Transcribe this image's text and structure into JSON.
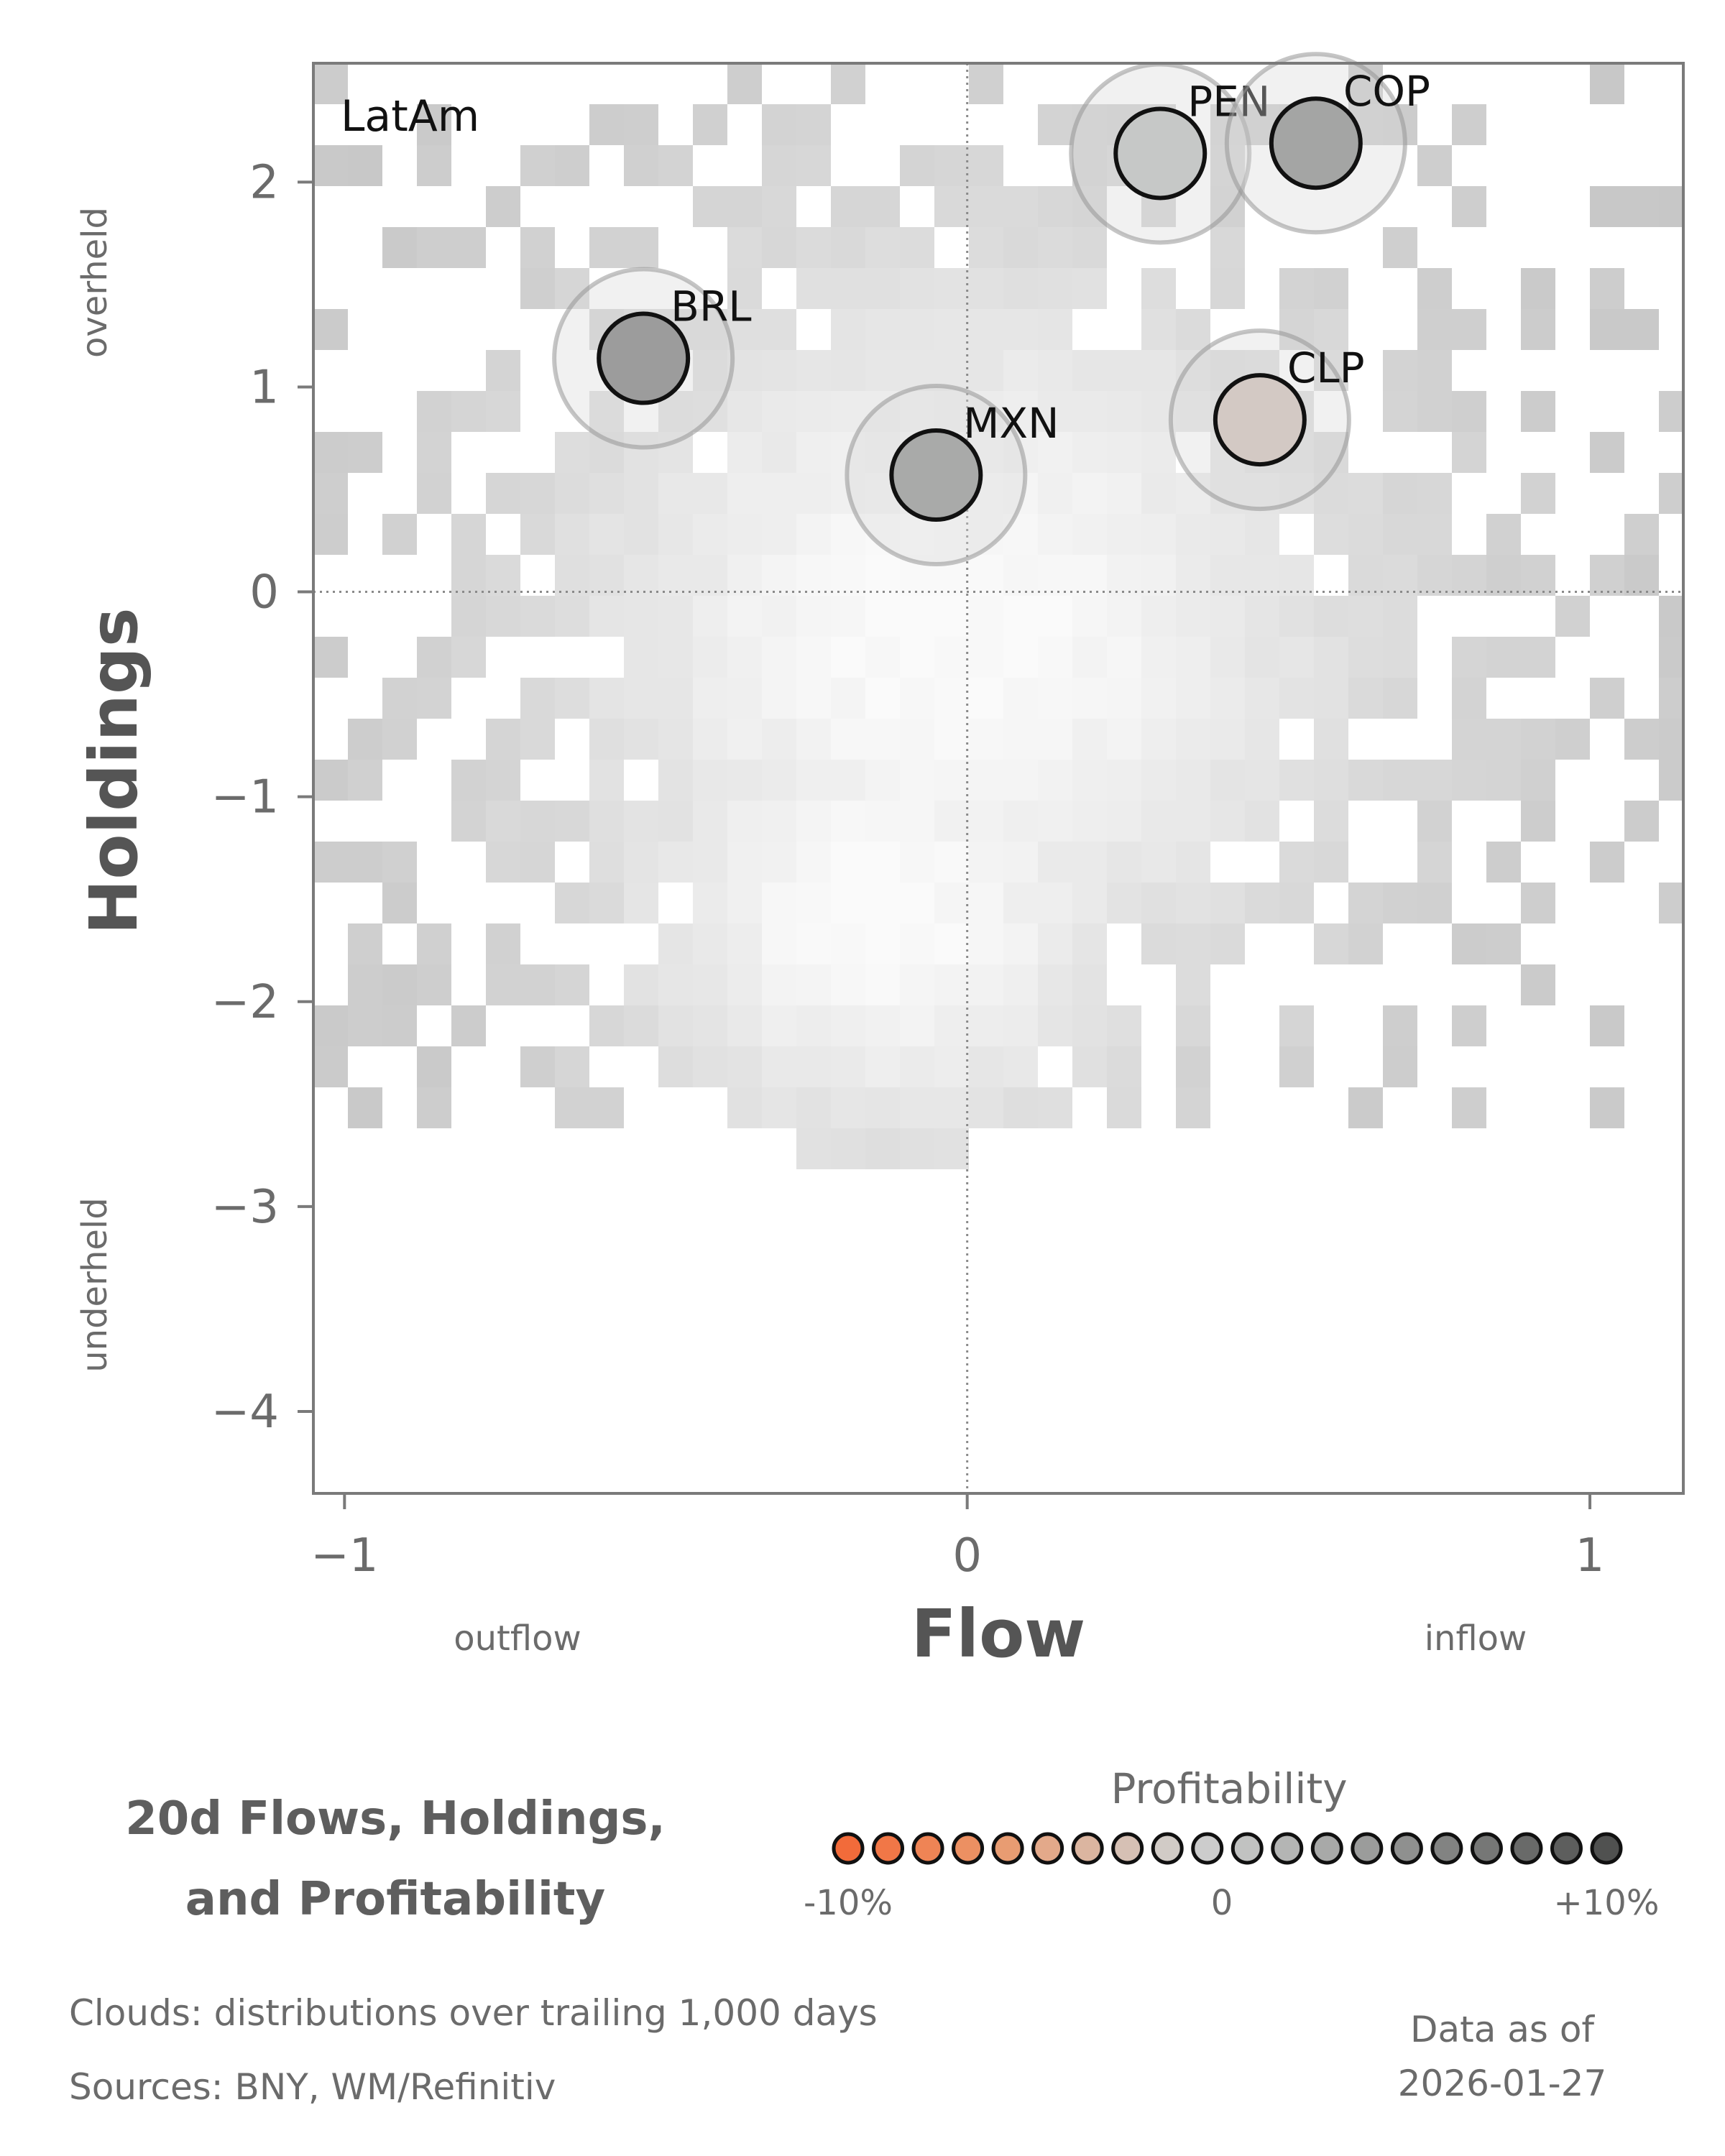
{
  "chart_data": {
    "type": "scatter",
    "panel_title": "LatAm",
    "xlabel": "Flow",
    "ylabel": "Holdings",
    "xlim": [
      -1.05,
      1.15
    ],
    "ylim": [
      -4.4,
      2.58
    ],
    "xticks": [
      -1,
      0,
      1
    ],
    "xtick_labels": [
      "−1",
      "0",
      "1"
    ],
    "yticks": [
      2,
      1,
      0,
      -1,
      -2,
      -3,
      -4
    ],
    "ytick_labels": [
      "2",
      "1",
      "0",
      "−1",
      "−2",
      "−3",
      "−4"
    ],
    "x_side_labels": {
      "left": "outflow",
      "right": "inflow"
    },
    "y_side_labels": {
      "top": "overheld",
      "bottom": "underheld"
    },
    "reference_lines": {
      "x": 0,
      "y": 0
    },
    "points": [
      {
        "label": "BRL",
        "x": -0.52,
        "y": 1.14,
        "color": "#9c9c9c"
      },
      {
        "label": "MXN",
        "x": -0.05,
        "y": 0.57,
        "color": "#a9aaa9"
      },
      {
        "label": "PEN",
        "x": 0.31,
        "y": 2.14,
        "color": "#c6c8c7"
      },
      {
        "label": "COP",
        "x": 0.56,
        "y": 2.19,
        "color": "#a4a5a4"
      },
      {
        "label": "CLP",
        "x": 0.47,
        "y": 0.84,
        "color": "#d3c9c4"
      }
    ]
  },
  "legend": {
    "title_line1": "20d Flows, Holdings,",
    "title_line2": "and Profitability",
    "profitability_label": "Profitability",
    "tick_low": "-10%",
    "tick_mid": "0",
    "tick_high": "+10%",
    "colors": [
      "#f26b3a",
      "#f17747",
      "#ef8455",
      "#ec9062",
      "#e89c72",
      "#e3a98a",
      "#dbb5a0",
      "#d6c0b4",
      "#d1cbc6",
      "#cccccc",
      "#c1c2c1",
      "#b4b5b4",
      "#a8a9a8",
      "#9b9c9b",
      "#8f908f",
      "#828382",
      "#767776",
      "#696a69",
      "#5d5e5d",
      "#505150"
    ]
  },
  "footer": {
    "clouds": "Clouds:  distributions over trailing 1,000 days",
    "sources": "Sources:  BNY, WM/Refinitiv",
    "asof_line1": "Data as of",
    "asof_line2": "2026-01-27"
  }
}
